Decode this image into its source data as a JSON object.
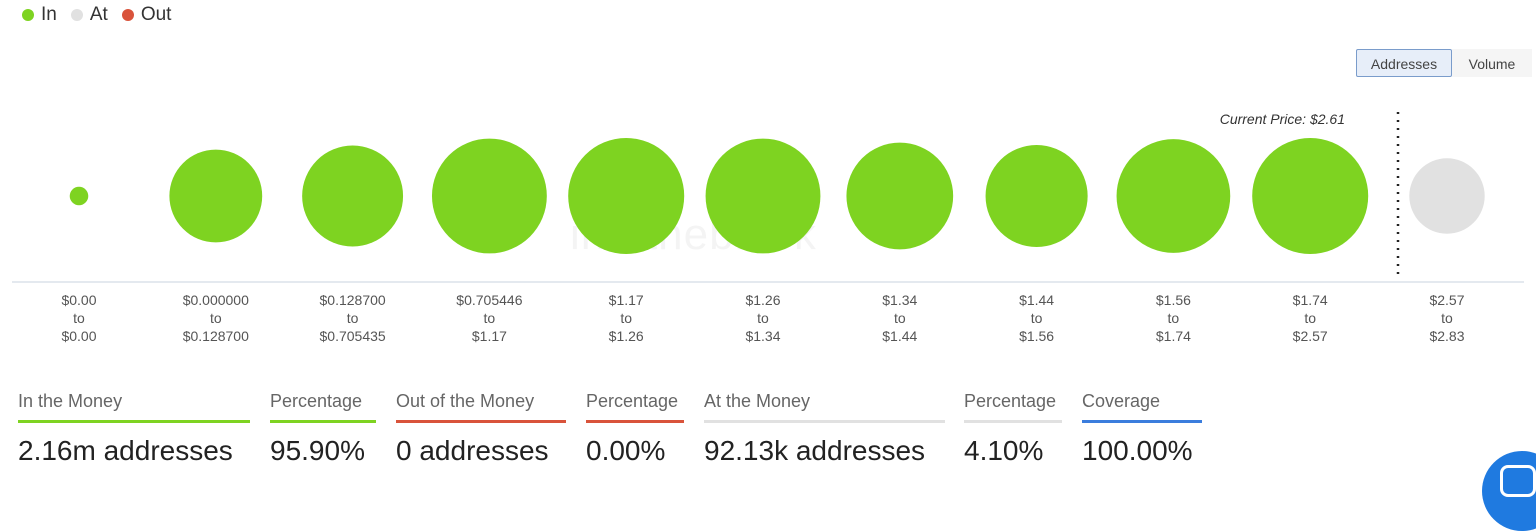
{
  "legend": {
    "in": {
      "label": "In",
      "color": "#7ed321"
    },
    "at": {
      "label": "At",
      "color": "#e1e1e1"
    },
    "out": {
      "label": "Out",
      "color": "#d9533b"
    }
  },
  "toggle": {
    "addresses_label": "Addresses",
    "volume_label": "Volume",
    "selected": "Addresses"
  },
  "chart_data": {
    "type": "bubble",
    "marker_label": "Current Price: $2.61",
    "current_price": 2.61,
    "categories": [
      {
        "low": "$0.00",
        "conn": "to",
        "high": "$0.00",
        "status": "in",
        "size": 0.16
      },
      {
        "low": "$0.000000",
        "conn": "to",
        "high": "$0.128700",
        "status": "in",
        "size": 0.8
      },
      {
        "low": "$0.128700",
        "conn": "to",
        "high": "$0.705435",
        "status": "in",
        "size": 0.87
      },
      {
        "low": "$0.705446",
        "conn": "to",
        "high": "$1.17",
        "status": "in",
        "size": 0.99
      },
      {
        "low": "$1.17",
        "conn": "to",
        "high": "$1.26",
        "status": "in",
        "size": 1.0
      },
      {
        "low": "$1.26",
        "conn": "to",
        "high": "$1.34",
        "status": "in",
        "size": 0.99
      },
      {
        "low": "$1.34",
        "conn": "to",
        "high": "$1.44",
        "status": "in",
        "size": 0.92
      },
      {
        "low": "$1.44",
        "conn": "to",
        "high": "$1.56",
        "status": "in",
        "size": 0.88
      },
      {
        "low": "$1.56",
        "conn": "to",
        "high": "$1.74",
        "status": "in",
        "size": 0.98
      },
      {
        "low": "$1.74",
        "conn": "to",
        "high": "$2.57",
        "status": "in",
        "size": 1.0
      },
      {
        "low": "$2.57",
        "conn": "to",
        "high": "$2.83",
        "status": "at",
        "size": 0.65
      }
    ]
  },
  "stats": [
    {
      "label": "In the Money",
      "value": "2.16m addresses",
      "color": "#7ed321"
    },
    {
      "label": "Percentage",
      "value": "95.90%",
      "color": "#7ed321"
    },
    {
      "label": "Out of the Money",
      "value": "0 addresses",
      "color": "#d9533b"
    },
    {
      "label": "Percentage",
      "value": "0.00%",
      "color": "#d9533b"
    },
    {
      "label": "At the Money",
      "value": "92.13k addresses",
      "color": "#e1e1e1"
    },
    {
      "label": "Percentage",
      "value": "4.10%",
      "color": "#e1e1e1"
    },
    {
      "label": "Coverage",
      "value": "100.00%",
      "color": "#3b7ddd"
    }
  ],
  "watermark": "intotheblock"
}
